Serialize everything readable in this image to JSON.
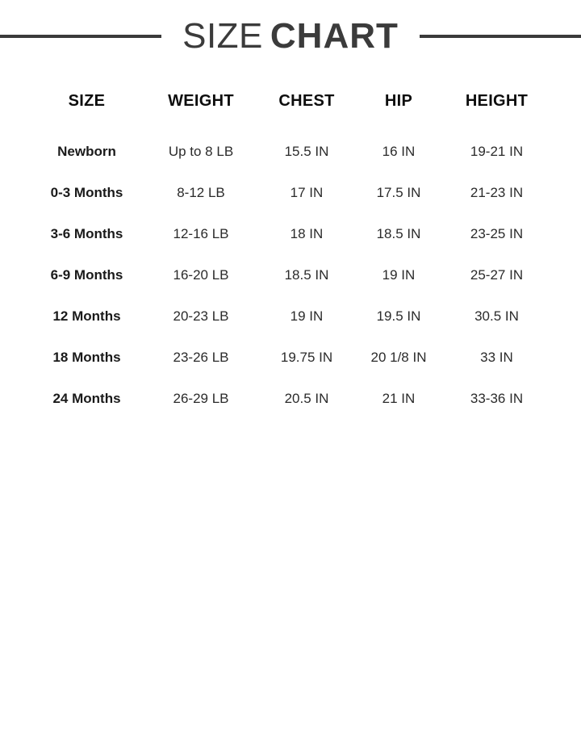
{
  "title": {
    "word_light": "SIZE",
    "word_bold": "CHART"
  },
  "colors": {
    "background": "#ffffff",
    "title_text": "#3b3b3b",
    "rule": "#3b3b3b",
    "header_text": "#0d0d0d",
    "size_label_text": "#1a1a1a",
    "data_text": "#2b2b2b"
  },
  "chart_data": {
    "type": "table",
    "title": "SIZE CHART",
    "columns": [
      "SIZE",
      "WEIGHT",
      "CHEST",
      "HIP",
      "HEIGHT"
    ],
    "rows": [
      [
        "Newborn",
        "Up to 8 LB",
        "15.5 IN",
        "16 IN",
        "19-21 IN"
      ],
      [
        "0-3 Months",
        "8-12 LB",
        "17 IN",
        "17.5 IN",
        "21-23 IN"
      ],
      [
        "3-6 Months",
        "12-16 LB",
        "18 IN",
        "18.5 IN",
        "23-25 IN"
      ],
      [
        "6-9 Months",
        "16-20 LB",
        "18.5 IN",
        "19 IN",
        "25-27 IN"
      ],
      [
        "12 Months",
        "20-23 LB",
        "19 IN",
        "19.5 IN",
        "30.5 IN"
      ],
      [
        "18 Months",
        "23-26 LB",
        "19.75 IN",
        "20 1/8 IN",
        "33 IN"
      ],
      [
        "24 Months",
        "26-29 LB",
        "20.5 IN",
        "21 IN",
        "33-36 IN"
      ]
    ]
  }
}
